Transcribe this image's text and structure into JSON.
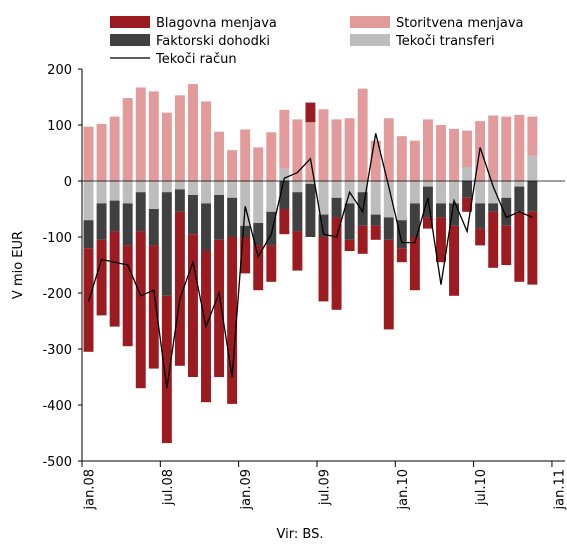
{
  "chart_data": {
    "type": "bar",
    "y_label": "V mio EUR",
    "source": "Vir: BS.",
    "categories": [
      "jan.08",
      null,
      null,
      null,
      null,
      null,
      "jul.08",
      null,
      null,
      null,
      null,
      null,
      "jan.09",
      null,
      null,
      null,
      null,
      null,
      "jul.09",
      null,
      null,
      null,
      null,
      null,
      "jan.10",
      null,
      null,
      null,
      null,
      null,
      "jul.10",
      null,
      null,
      null,
      null,
      null,
      "jan.11"
    ],
    "series": [
      {
        "name": "Blagovna menjava",
        "color": "#9b1b20",
        "values": [
          -185,
          -135,
          -170,
          -180,
          -280,
          -220,
          -263,
          -275,
          -255,
          -270,
          -245,
          -298,
          -65,
          -80,
          -65,
          -45,
          -70,
          35,
          -115,
          -165,
          -20,
          -50,
          -25,
          -160,
          -25,
          -95,
          -20,
          -80,
          -125,
          -25,
          -30,
          -100,
          -70,
          -125,
          -130,
          null,
          null
        ]
      },
      {
        "name": "Storitvena menjava",
        "color": "#e29a9a",
        "values": [
          97,
          102,
          115,
          148,
          167,
          160,
          122,
          153,
          173,
          142,
          88,
          55,
          92,
          60,
          87,
          105,
          110,
          105,
          128,
          110,
          112,
          165,
          72,
          112,
          80,
          72,
          110,
          100,
          93,
          65,
          107,
          117,
          115,
          118,
          70,
          null,
          null
        ]
      },
      {
        "name": "Faktorski dohodki",
        "color": "#404040",
        "values": [
          -50,
          -65,
          -55,
          -75,
          -70,
          -65,
          -185,
          -40,
          -70,
          -85,
          -80,
          -70,
          -20,
          -40,
          -60,
          -50,
          -70,
          -95,
          -40,
          -35,
          -65,
          -60,
          -20,
          -40,
          -50,
          -60,
          -55,
          -25,
          -40,
          -30,
          -45,
          -15,
          -50,
          -45,
          -55,
          null,
          null
        ]
      },
      {
        "name": "Tekoči transferi",
        "color": "#bdbdbd",
        "values": [
          -70,
          -40,
          -35,
          -40,
          -20,
          -50,
          -20,
          -15,
          -25,
          -40,
          -25,
          -30,
          -80,
          -75,
          -55,
          22,
          -20,
          -5,
          -60,
          -30,
          -40,
          -20,
          -60,
          -65,
          -70,
          -40,
          -10,
          -40,
          -40,
          25,
          -40,
          -40,
          -30,
          -10,
          45,
          null,
          null
        ]
      },
      {
        "name": "Tekoči račun",
        "type": "line",
        "color": "#000000",
        "values": [
          -215,
          -140,
          -145,
          -150,
          -205,
          -195,
          -370,
          -210,
          -145,
          -260,
          -200,
          -350,
          -45,
          -135,
          -95,
          5,
          15,
          40,
          -95,
          -100,
          -20,
          -55,
          85,
          -10,
          -110,
          -110,
          -30,
          -185,
          -35,
          -90,
          60,
          -10,
          -65,
          -55,
          -65,
          null,
          null
        ]
      }
    ],
    "ylim": [
      -500,
      200
    ],
    "yticks": [
      -500,
      -400,
      -300,
      -200,
      -100,
      0,
      100,
      200
    ]
  }
}
